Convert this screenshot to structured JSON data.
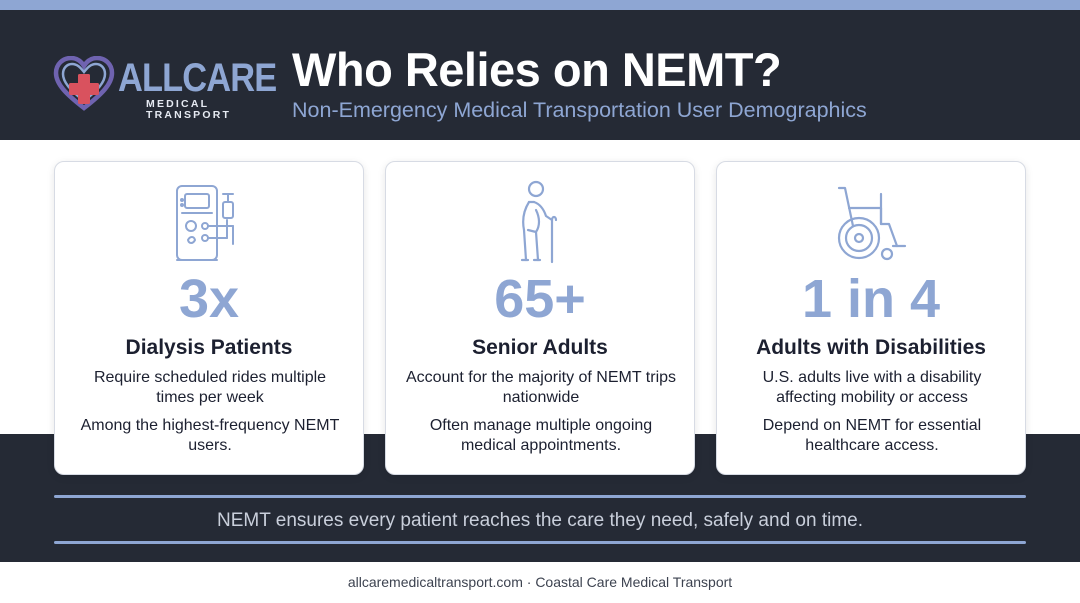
{
  "brand": {
    "name": "ALLCARE",
    "tagline": "MEDICAL TRANSPORT",
    "icon": "heart-cross-icon"
  },
  "header": {
    "title": "Who Relies on NEMT?",
    "subtitle": "Non-Emergency Medical Transportation User Demographics"
  },
  "cards": [
    {
      "icon": "dialysis-machine-icon",
      "stat": "3x",
      "title": "Dialysis Patients",
      "desc1": "Require scheduled rides multiple times per week",
      "desc2": "Among the highest-frequency NEMT users."
    },
    {
      "icon": "senior-with-cane-icon",
      "stat": "65+",
      "title": "Senior Adults",
      "desc1": "Account for the majority of NEMT trips nationwide",
      "desc2": "Often manage multiple ongoing medical appointments."
    },
    {
      "icon": "wheelchair-icon",
      "stat": "1 in 4",
      "title": "Adults with Disabilities",
      "desc1": "U.S. adults live with a disability affecting mobility or access",
      "desc2": "Depend on NEMT for essential healthcare access."
    }
  ],
  "tagline": "NEMT ensures every patient reaches the care they need, safely and on time.",
  "footer": "allcaremedicaltransport.com · Coastal Care Medical Transport",
  "colors": {
    "accent": "#8ea6d3",
    "dark": "#252a35",
    "brand_red": "#d9525e",
    "brand_purple": "#6f63b0"
  }
}
